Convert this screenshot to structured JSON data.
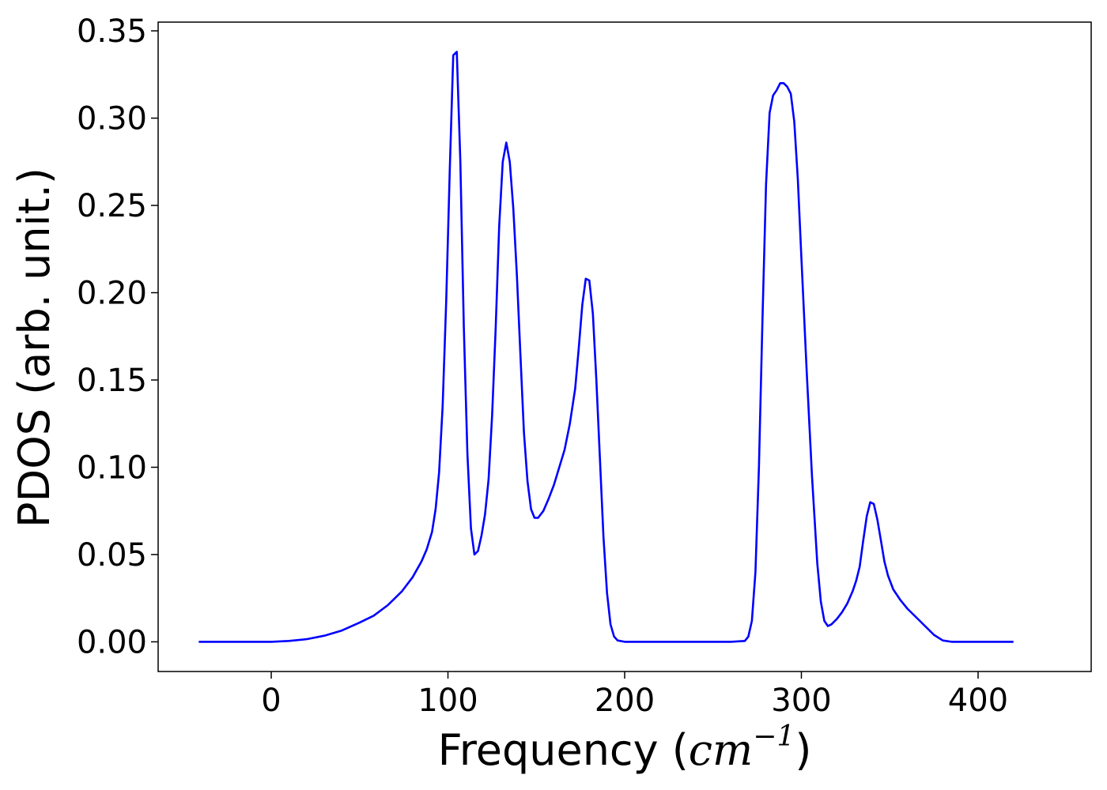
{
  "chart_data": {
    "type": "line",
    "xlabel_prefix": "Frequency (",
    "xlabel_math": "cm",
    "xlabel_exp": "−1",
    "xlabel_suffix": ")",
    "ylabel": "PDOS (arb. unit.)",
    "xlim": [
      -64,
      464
    ],
    "ylim": [
      -0.017,
      0.355
    ],
    "xticks": [
      0,
      100,
      200,
      300,
      400
    ],
    "yticks": [
      0.0,
      0.05,
      0.1,
      0.15,
      0.2,
      0.25,
      0.3,
      0.35
    ],
    "ytick_labels": [
      "0.00",
      "0.05",
      "0.10",
      "0.15",
      "0.20",
      "0.25",
      "0.30",
      "0.35"
    ],
    "grid": false,
    "series": [
      {
        "color": "#0000ff",
        "points": [
          [
            -41,
            0.0
          ],
          [
            0,
            0.0
          ],
          [
            10,
            0.0005
          ],
          [
            20,
            0.0015
          ],
          [
            30,
            0.0035
          ],
          [
            40,
            0.0065
          ],
          [
            50,
            0.011
          ],
          [
            58,
            0.015
          ],
          [
            66,
            0.021
          ],
          [
            74,
            0.029
          ],
          [
            80,
            0.037
          ],
          [
            85,
            0.046
          ],
          [
            88,
            0.053
          ],
          [
            91,
            0.063
          ],
          [
            93,
            0.076
          ],
          [
            95,
            0.097
          ],
          [
            97,
            0.135
          ],
          [
            99,
            0.195
          ],
          [
            101,
            0.27
          ],
          [
            103,
            0.336
          ],
          [
            105,
            0.338
          ],
          [
            107,
            0.275
          ],
          [
            109,
            0.18
          ],
          [
            111,
            0.108
          ],
          [
            113,
            0.065
          ],
          [
            115,
            0.05
          ],
          [
            117,
            0.052
          ],
          [
            119,
            0.061
          ],
          [
            121,
            0.073
          ],
          [
            123,
            0.093
          ],
          [
            125,
            0.13
          ],
          [
            127,
            0.18
          ],
          [
            129,
            0.238
          ],
          [
            131,
            0.275
          ],
          [
            133,
            0.286
          ],
          [
            135,
            0.275
          ],
          [
            137,
            0.248
          ],
          [
            139,
            0.21
          ],
          [
            141,
            0.165
          ],
          [
            143,
            0.12
          ],
          [
            145,
            0.092
          ],
          [
            147,
            0.076
          ],
          [
            149,
            0.071
          ],
          [
            151,
            0.071
          ],
          [
            154,
            0.075
          ],
          [
            157,
            0.082
          ],
          [
            160,
            0.09
          ],
          [
            163,
            0.1
          ],
          [
            166,
            0.11
          ],
          [
            169,
            0.125
          ],
          [
            172,
            0.145
          ],
          [
            174,
            0.168
          ],
          [
            176,
            0.193
          ],
          [
            178,
            0.208
          ],
          [
            180,
            0.207
          ],
          [
            182,
            0.188
          ],
          [
            184,
            0.15
          ],
          [
            186,
            0.105
          ],
          [
            188,
            0.06
          ],
          [
            190,
            0.028
          ],
          [
            192,
            0.01
          ],
          [
            194,
            0.003
          ],
          [
            196,
            0.0008
          ],
          [
            200,
            0.0
          ],
          [
            260,
            0.0
          ],
          [
            268,
            0.0005
          ],
          [
            270,
            0.003
          ],
          [
            272,
            0.012
          ],
          [
            274,
            0.04
          ],
          [
            276,
            0.1
          ],
          [
            278,
            0.185
          ],
          [
            280,
            0.262
          ],
          [
            282,
            0.303
          ],
          [
            284,
            0.313
          ],
          [
            286,
            0.316
          ],
          [
            288,
            0.32
          ],
          [
            290,
            0.32
          ],
          [
            292,
            0.318
          ],
          [
            294,
            0.314
          ],
          [
            296,
            0.298
          ],
          [
            298,
            0.265
          ],
          [
            300,
            0.22
          ],
          [
            303,
            0.155
          ],
          [
            306,
            0.095
          ],
          [
            309,
            0.045
          ],
          [
            311,
            0.023
          ],
          [
            313,
            0.012
          ],
          [
            315,
            0.009
          ],
          [
            317,
            0.01
          ],
          [
            320,
            0.013
          ],
          [
            323,
            0.017
          ],
          [
            326,
            0.022
          ],
          [
            329,
            0.029
          ],
          [
            331,
            0.035
          ],
          [
            333,
            0.043
          ],
          [
            335,
            0.058
          ],
          [
            337,
            0.072
          ],
          [
            339,
            0.08
          ],
          [
            341,
            0.079
          ],
          [
            343,
            0.07
          ],
          [
            345,
            0.058
          ],
          [
            347,
            0.046
          ],
          [
            349,
            0.038
          ],
          [
            352,
            0.03
          ],
          [
            356,
            0.024
          ],
          [
            360,
            0.019
          ],
          [
            365,
            0.014
          ],
          [
            370,
            0.009
          ],
          [
            375,
            0.004
          ],
          [
            380,
            0.0008
          ],
          [
            385,
            0.0
          ],
          [
            420,
            0.0
          ]
        ]
      }
    ]
  }
}
